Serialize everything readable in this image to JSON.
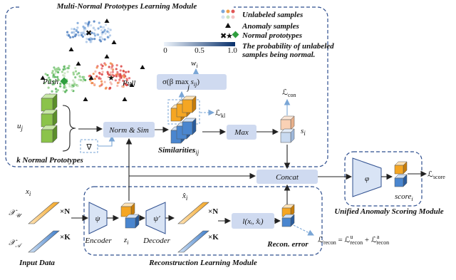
{
  "modules": {
    "prototype": "Multi-Normal Prototypes Learning Module",
    "reconstruction": "Reconstruction Learning Module",
    "scoring": "Unified Anomaly Scoring Module"
  },
  "legend": {
    "unlabeled": "Unlabeled samples",
    "anomaly": "Anomaly samples",
    "prototypes": "Normal prototypes",
    "probability": [
      "The probability of unlabeled",
      "samples being normal."
    ],
    "colorbar_ticks": [
      "0",
      "0.5",
      "1.0"
    ]
  },
  "labels": {
    "w": {
      "base": "w",
      "sub": "i"
    },
    "sigma": {
      "pre": "σ(β max ",
      "under": "j",
      "s": "s",
      "sub": "ij",
      "post": ")"
    },
    "u": {
      "base": "u",
      "sub": "j"
    },
    "k_prototypes": "k Normal Prototypes",
    "grad": "∇",
    "push": "Push",
    "pull": "Pull",
    "norm_sim": "Norm & Sim",
    "L_kl": {
      "base": "ℒ",
      "sub": "kl"
    },
    "similarities": "Similarities",
    "s_ij": {
      "base": "s",
      "sub": "ij"
    },
    "max": "Max",
    "L_con": {
      "base": "ℒ",
      "sub": "con"
    },
    "s_i": {
      "base": "s",
      "sub": "i"
    },
    "concat": "Concat",
    "phi": "φ",
    "L_score": {
      "base": "ℒ",
      "sub": "score"
    },
    "score": {
      "base": "score",
      "sub": "i"
    },
    "x_i": {
      "base": "x",
      "sub": "i"
    },
    "X_U": {
      "base": "𝒳",
      "sub": "𝒰"
    },
    "X_A": {
      "base": "𝒳",
      "sub": "𝒜"
    },
    "times_n": "×N",
    "times_k": "×K",
    "input_data": "Input Data",
    "psi": "ψ",
    "psi_prime": "ψ′",
    "encoder": "Encoder",
    "decoder": "Decoder",
    "z_i": {
      "base": "z",
      "sub": "i"
    },
    "xhat_i": {
      "base": "x̂",
      "sub": "i"
    },
    "loss_fn": "l(xᵢ, x̂ᵢ)",
    "recon_error": "Recon. error",
    "L_recon": {
      "lhs": "ℒ",
      "sub": "recon",
      "eq": " = ℒ",
      "sup_u": "u",
      "plus": " + ℒ",
      "sup_a": "a"
    }
  }
}
